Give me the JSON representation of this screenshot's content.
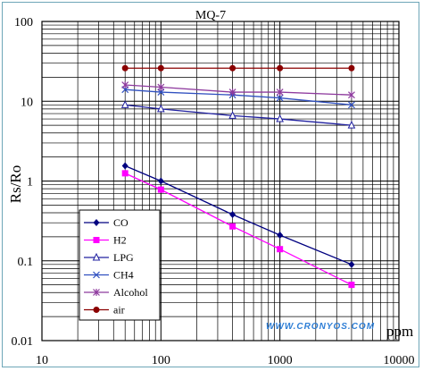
{
  "chart_data": {
    "type": "line",
    "title": "MQ-7",
    "xlabel": "ppm",
    "ylabel": "Rs/Ro",
    "x_scale": "log",
    "y_scale": "log",
    "xlim": [
      10,
      10000
    ],
    "ylim": [
      0.01,
      100
    ],
    "x_ticks": [
      "10",
      "100",
      "1000",
      "10000"
    ],
    "y_ticks": [
      "100",
      "10",
      "1",
      "0.1",
      "0.01"
    ],
    "grid": true,
    "legend_position": "bottom-left",
    "watermark": "WWW.CRONYOS.COM",
    "series": [
      {
        "name": "CO",
        "color": "#000080",
        "marker": "diamond",
        "x": [
          50,
          100,
          400,
          1000,
          4000
        ],
        "y": [
          1.55,
          1.0,
          0.38,
          0.21,
          0.09
        ]
      },
      {
        "name": "H2",
        "color": "#ff00ff",
        "marker": "square",
        "x": [
          50,
          100,
          400,
          1000,
          4000
        ],
        "y": [
          1.25,
          0.78,
          0.27,
          0.14,
          0.05
        ]
      },
      {
        "name": "LPG",
        "color": "#2020a0",
        "marker": "triangle",
        "x": [
          50,
          100,
          400,
          1000,
          4000
        ],
        "y": [
          9.0,
          8.0,
          6.6,
          6.0,
          5.0
        ]
      },
      {
        "name": "CH4",
        "color": "#3050c0",
        "marker": "x",
        "x": [
          50,
          100,
          400,
          1000,
          4000
        ],
        "y": [
          14.0,
          13.0,
          12.0,
          11.0,
          9.0
        ]
      },
      {
        "name": "Alcohol",
        "color": "#8e3a9e",
        "marker": "star",
        "x": [
          50,
          100,
          400,
          1000,
          4000
        ],
        "y": [
          16.0,
          15.0,
          13.0,
          13.0,
          12.0
        ]
      },
      {
        "name": "air",
        "color": "#8b0000",
        "marker": "circle",
        "x": [
          50,
          100,
          400,
          1000,
          4000
        ],
        "y": [
          26.0,
          26.0,
          26.0,
          26.0,
          26.0
        ]
      }
    ]
  }
}
